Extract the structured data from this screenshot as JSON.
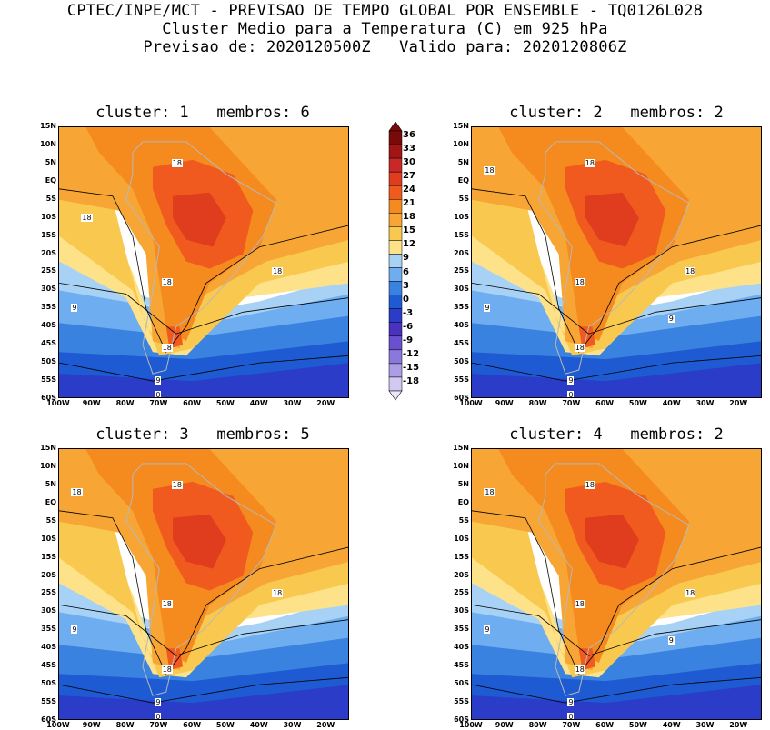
{
  "header": {
    "line1": "CPTEC/INPE/MCT - PREVISAO DE TEMPO GLOBAL POR ENSEMBLE - TQ0126L028",
    "line2": "Cluster Medio para a Temperatura (C) em 925 hPa",
    "line3": "Previsao de: 2020120500Z   Valido para: 2020120806Z"
  },
  "axes": {
    "lat_labels": [
      "15N",
      "10N",
      "5N",
      "EQ",
      "5S",
      "10S",
      "15S",
      "20S",
      "25S",
      "30S",
      "35S",
      "40S",
      "45S",
      "50S",
      "55S",
      "60S"
    ],
    "lon_labels": [
      "100W",
      "90W",
      "80W",
      "70W",
      "60W",
      "50W",
      "40W",
      "30W",
      "20W"
    ]
  },
  "colorbar": {
    "levels": [
      "36",
      "33",
      "30",
      "27",
      "24",
      "21",
      "18",
      "15",
      "12",
      "9",
      "6",
      "3",
      "0",
      "-3",
      "-6",
      "-9",
      "-12",
      "-15",
      "-18"
    ],
    "colors": [
      "#7a0a0a",
      "#a31414",
      "#c82828",
      "#e03c1e",
      "#f05a1e",
      "#f58a1e",
      "#f7a535",
      "#f9c84f",
      "#fde28a",
      "#a8d2f5",
      "#6eaef0",
      "#3a82e0",
      "#1e5ad2",
      "#2a3cc8",
      "#4a32c0",
      "#6a50d0",
      "#8a78dc",
      "#ac9ee6",
      "#d2c8f2"
    ]
  },
  "panels": [
    {
      "title": "cluster: 1   membros: 6",
      "contour_labels": [
        "18",
        "18",
        "18",
        "18",
        "9",
        "18",
        "9",
        "0"
      ]
    },
    {
      "title": "cluster: 2   membros: 2",
      "contour_labels": [
        "18",
        "18",
        "18",
        "18",
        "9",
        "9",
        "18",
        "9",
        "0"
      ]
    },
    {
      "title": "cluster: 3   membros: 5",
      "contour_labels": [
        "18",
        "18",
        "18",
        "18",
        "9",
        "18",
        "9",
        "0"
      ]
    },
    {
      "title": "cluster: 4   membros: 2",
      "contour_labels": [
        "18",
        "18",
        "18",
        "18",
        "9",
        "9",
        "18",
        "9",
        "0"
      ]
    }
  ]
}
